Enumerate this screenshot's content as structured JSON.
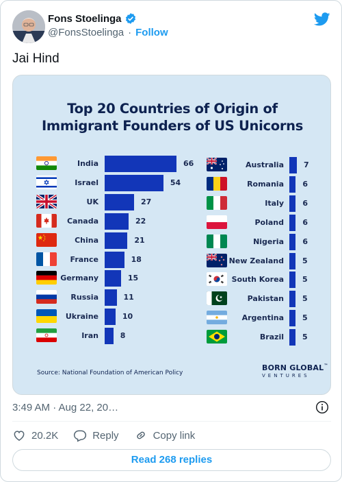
{
  "author": {
    "name": "Fons Stoelinga",
    "handle": "@FonsStoelinga",
    "separator": "·",
    "follow_label": "Follow"
  },
  "tweet": {
    "text": "Jai Hind",
    "time": "3:49 AM · Aug 22, 20…"
  },
  "actions": {
    "likes": "20.2K",
    "reply_label": "Reply",
    "copy_label": "Copy link",
    "read_replies_label": "Read 268 replies"
  },
  "colors": {
    "twitter_blue": "#1d9bf0",
    "bar_blue": "#1236b8",
    "infographic_bg": "#d5e7f4",
    "title_navy": "#0e2250"
  },
  "icons": [
    "verified-badge-icon",
    "twitter-bird-icon",
    "info-icon",
    "heart-icon",
    "reply-icon",
    "link-icon"
  ],
  "infographic": {
    "title_line1": "Top 20 Countries of Origin of",
    "title_line2": "Immigrant Founders of US Unicorns",
    "source": "Source: National Foundation of American Policy",
    "brand_line1": "BORN GLOBAL",
    "brand_tm": "™",
    "brand_line2": "VENTURES"
  },
  "chart_data": {
    "type": "bar",
    "title": "Top 20 Countries of Origin of Immigrant Founders of US Unicorns",
    "max_value": 66,
    "series": [
      {
        "values": [
          {
            "country": "India",
            "value": 66
          },
          {
            "country": "Israel",
            "value": 54
          },
          {
            "country": "UK",
            "value": 27
          },
          {
            "country": "Canada",
            "value": 22
          },
          {
            "country": "China",
            "value": 21
          },
          {
            "country": "France",
            "value": 18
          },
          {
            "country": "Germany",
            "value": 15
          },
          {
            "country": "Russia",
            "value": 11
          },
          {
            "country": "Ukraine",
            "value": 10
          },
          {
            "country": "Iran",
            "value": 8
          }
        ]
      },
      {
        "values": [
          {
            "country": "Australia",
            "value": 7
          },
          {
            "country": "Romania",
            "value": 6
          },
          {
            "country": "Italy",
            "value": 6
          },
          {
            "country": "Poland",
            "value": 6
          },
          {
            "country": "Nigeria",
            "value": 6
          },
          {
            "country": "New Zealand",
            "value": 5
          },
          {
            "country": "South Korea",
            "value": 5
          },
          {
            "country": "Pakistan",
            "value": 5
          },
          {
            "country": "Argentina",
            "value": 5
          },
          {
            "country": "Brazil",
            "value": 5
          }
        ]
      }
    ]
  }
}
